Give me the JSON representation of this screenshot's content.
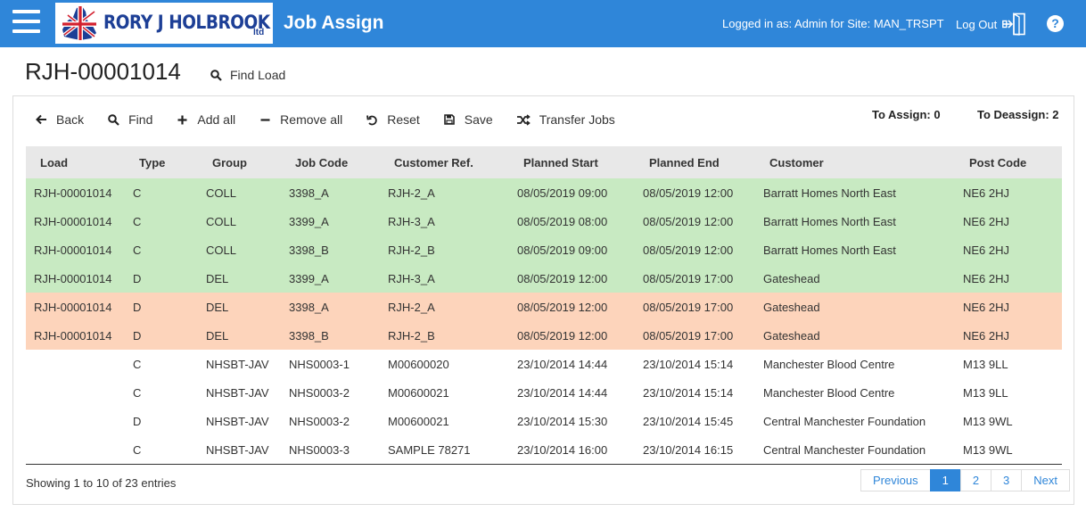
{
  "header": {
    "logo_text": "RORY J HOLBROOK",
    "logo_ltd": "ltd",
    "app_title": "Job Assign",
    "logged_in": "Logged in as: Admin for Site: MAN_TRSPT",
    "logout_label": "Log Out",
    "help": "?"
  },
  "page": {
    "load_id": "RJH-00001014",
    "find_load_label": "Find Load"
  },
  "toolbar": {
    "back": "Back",
    "find": "Find",
    "add_all": "Add all",
    "remove_all": "Remove all",
    "reset": "Reset",
    "save": "Save",
    "transfer_jobs": "Transfer Jobs"
  },
  "counts": {
    "to_assign": "To Assign: 0",
    "to_deassign": "To Deassign: 2"
  },
  "table": {
    "headers": [
      "Load",
      "Type",
      "Group",
      "Job Code",
      "Customer Ref.",
      "Planned Start",
      "Planned End",
      "Customer",
      "Post Code"
    ],
    "rows": [
      {
        "status": "green",
        "cells": [
          "RJH-00001014",
          "C",
          "COLL",
          "3398_A",
          "RJH-2_A",
          "08/05/2019 09:00",
          "08/05/2019 12:00",
          "Barratt Homes North East",
          "NE6 2HJ"
        ]
      },
      {
        "status": "green",
        "cells": [
          "RJH-00001014",
          "C",
          "COLL",
          "3399_A",
          "RJH-3_A",
          "08/05/2019 08:00",
          "08/05/2019 12:00",
          "Barratt Homes North East",
          "NE6 2HJ"
        ]
      },
      {
        "status": "green",
        "cells": [
          "RJH-00001014",
          "C",
          "COLL",
          "3398_B",
          "RJH-2_B",
          "08/05/2019 09:00",
          "08/05/2019 12:00",
          "Barratt Homes North East",
          "NE6 2HJ"
        ]
      },
      {
        "status": "green",
        "cells": [
          "RJH-00001014",
          "D",
          "DEL",
          "3399_A",
          "RJH-3_A",
          "08/05/2019 12:00",
          "08/05/2019 17:00",
          "Gateshead",
          "NE6 2HJ"
        ]
      },
      {
        "status": "orange",
        "cells": [
          "RJH-00001014",
          "D",
          "DEL",
          "3398_A",
          "RJH-2_A",
          "08/05/2019 12:00",
          "08/05/2019 17:00",
          "Gateshead",
          "NE6 2HJ"
        ]
      },
      {
        "status": "orange",
        "cells": [
          "RJH-00001014",
          "D",
          "DEL",
          "3398_B",
          "RJH-2_B",
          "08/05/2019 12:00",
          "08/05/2019 17:00",
          "Gateshead",
          "NE6 2HJ"
        ]
      },
      {
        "status": "white",
        "cells": [
          "",
          "C",
          "NHSBT-JAV",
          "NHS0003-1",
          "M00600020",
          "23/10/2014 14:44",
          "23/10/2014 15:14",
          "Manchester Blood Centre",
          "M13 9LL"
        ]
      },
      {
        "status": "white",
        "cells": [
          "",
          "C",
          "NHSBT-JAV",
          "NHS0003-2",
          "M00600021",
          "23/10/2014 14:44",
          "23/10/2014 15:14",
          "Manchester Blood Centre",
          "M13 9LL"
        ]
      },
      {
        "status": "white",
        "cells": [
          "",
          "D",
          "NHSBT-JAV",
          "NHS0003-2",
          "M00600021",
          "23/10/2014 15:30",
          "23/10/2014 15:45",
          "Central Manchester Foundation",
          "M13 9WL"
        ]
      },
      {
        "status": "white",
        "cells": [
          "",
          "C",
          "NHSBT-JAV",
          "NHS0003-3",
          "SAMPLE 78271",
          "23/10/2014 16:00",
          "23/10/2014 16:15",
          "Central Manchester Foundation",
          "M13 9WL"
        ]
      }
    ]
  },
  "footer": {
    "info": "Showing 1 to 10 of 23 entries",
    "pagination": {
      "previous": "Previous",
      "pages": [
        "1",
        "2",
        "3"
      ],
      "active_page": "1",
      "next": "Next"
    }
  },
  "colors": {
    "header_bg": "#2f86d9",
    "assigned_row": "#c8eac2",
    "deassign_row": "#fdd4bb",
    "logo_blue": "#1d3f96"
  }
}
